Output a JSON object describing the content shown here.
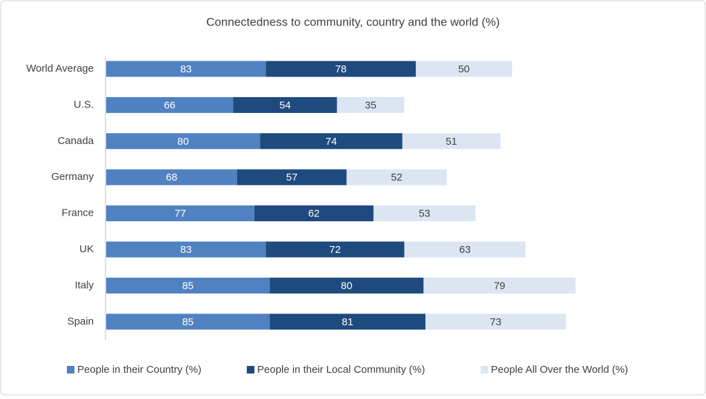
{
  "chart_data": {
    "type": "stacked-barh",
    "title": "Connectedness to community, country and the world (%)",
    "categories": [
      "World Average",
      "U.S.",
      "Canada",
      "Germany",
      "France",
      "UK",
      "Italy",
      "Spain"
    ],
    "series": [
      {
        "name": "People in their Country (%)",
        "color": "#5082c2",
        "label_color": "#ffffff",
        "values": [
          83,
          66,
          80,
          68,
          77,
          83,
          85,
          85
        ]
      },
      {
        "name": "People in their Local Community (%)",
        "color": "#1f4a7e",
        "label_color": "#ffffff",
        "values": [
          78,
          54,
          74,
          57,
          62,
          72,
          80,
          81
        ]
      },
      {
        "name": "People All Over the World (%)",
        "color": "#dce6f2",
        "label_color": "#404040",
        "values": [
          50,
          35,
          51,
          52,
          53,
          63,
          79,
          73
        ]
      }
    ],
    "legend": "bottom"
  }
}
